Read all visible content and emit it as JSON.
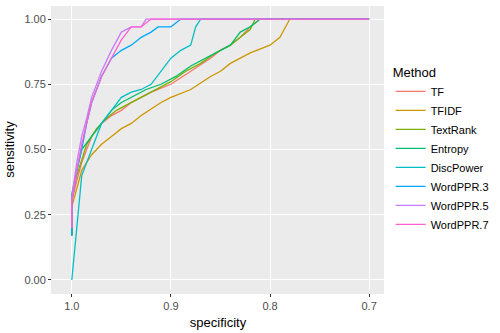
{
  "chart_data": {
    "type": "line",
    "x_label": "specificity",
    "y_label": "sensitivity",
    "legend_title": "Method",
    "legend": "right",
    "grid": true,
    "xlim": [
      1.02,
      0.685
    ],
    "ylim": [
      -0.05,
      1.05
    ],
    "xticks": [
      {
        "value": 1.0,
        "label": "1.0"
      },
      0.9,
      0.8,
      0.7
    ],
    "yticks": [
      {
        "value": 0,
        "label": "0.00"
      },
      {
        "value": 0.25,
        "label": "0.25"
      },
      {
        "value": 0.5,
        "label": "0.50"
      },
      {
        "value": 0.75,
        "label": "0.75"
      },
      {
        "value": 1,
        "label": "1.00"
      }
    ],
    "series": [
      {
        "name": "TF",
        "color": "#F8766D",
        "x": [
          1.0,
          1.0,
          0.995,
          0.99,
          0.985,
          0.98,
          0.97,
          0.96,
          0.95,
          0.94,
          0.93,
          0.92,
          0.9,
          0.88,
          0.86,
          0.85,
          0.84,
          0.83,
          0.82,
          0.81,
          0.7
        ],
        "values": [
          0.17,
          0.3,
          0.38,
          0.45,
          0.5,
          0.55,
          0.6,
          0.63,
          0.65,
          0.68,
          0.7,
          0.72,
          0.75,
          0.8,
          0.85,
          0.88,
          0.9,
          0.93,
          0.97,
          1.0,
          1.0
        ]
      },
      {
        "name": "TFIDF",
        "color": "#CD9600",
        "x": [
          1.0,
          1.0,
          0.995,
          0.99,
          0.98,
          0.97,
          0.96,
          0.95,
          0.94,
          0.93,
          0.91,
          0.9,
          0.88,
          0.86,
          0.85,
          0.84,
          0.82,
          0.8,
          0.79,
          0.78,
          0.7
        ],
        "values": [
          0.17,
          0.28,
          0.35,
          0.42,
          0.48,
          0.52,
          0.55,
          0.58,
          0.6,
          0.63,
          0.68,
          0.7,
          0.73,
          0.78,
          0.8,
          0.83,
          0.87,
          0.9,
          0.93,
          1.0,
          1.0
        ]
      },
      {
        "name": "TextRank",
        "color": "#7CAE00",
        "x": [
          1.0,
          1.0,
          0.995,
          0.99,
          0.985,
          0.975,
          0.965,
          0.955,
          0.945,
          0.93,
          0.92,
          0.9,
          0.885,
          0.87,
          0.855,
          0.84,
          0.83,
          0.82,
          0.815,
          0.7
        ],
        "values": [
          0.17,
          0.32,
          0.4,
          0.46,
          0.52,
          0.58,
          0.62,
          0.65,
          0.67,
          0.7,
          0.72,
          0.76,
          0.8,
          0.83,
          0.87,
          0.9,
          0.93,
          0.96,
          1.0,
          1.0
        ]
      },
      {
        "name": "Entropy",
        "color": "#00BE67",
        "x": [
          1.0,
          1.0,
          0.995,
          0.99,
          0.98,
          0.97,
          0.96,
          0.95,
          0.94,
          0.925,
          0.91,
          0.895,
          0.88,
          0.865,
          0.85,
          0.84,
          0.83,
          0.82,
          0.81,
          0.7
        ],
        "values": [
          0.17,
          0.33,
          0.42,
          0.5,
          0.55,
          0.6,
          0.65,
          0.68,
          0.7,
          0.73,
          0.75,
          0.78,
          0.82,
          0.85,
          0.88,
          0.9,
          0.95,
          0.97,
          1.0,
          1.0
        ]
      },
      {
        "name": "DiscPower",
        "color": "#00BFC4",
        "x": [
          1.0,
          0.99,
          0.98,
          0.97,
          0.96,
          0.95,
          0.94,
          0.93,
          0.92,
          0.91,
          0.9,
          0.89,
          0.88,
          0.875,
          0.87,
          0.7
        ],
        "values": [
          0.0,
          0.4,
          0.5,
          0.6,
          0.65,
          0.7,
          0.72,
          0.73,
          0.75,
          0.8,
          0.85,
          0.88,
          0.9,
          0.97,
          1.0,
          1.0
        ]
      },
      {
        "name": "WordPPR.3",
        "color": "#00A9FF",
        "x": [
          1.0,
          1.0,
          0.995,
          0.99,
          0.985,
          0.98,
          0.97,
          0.96,
          0.95,
          0.94,
          0.93,
          0.92,
          0.913,
          0.9,
          0.89,
          0.7
        ],
        "values": [
          0.17,
          0.3,
          0.42,
          0.5,
          0.6,
          0.68,
          0.78,
          0.85,
          0.88,
          0.9,
          0.93,
          0.95,
          0.97,
          0.97,
          1.0,
          1.0
        ]
      },
      {
        "name": "WordPPR.5",
        "color": "#C77CFF",
        "x": [
          1.0,
          1.0,
          0.995,
          0.99,
          0.985,
          0.98,
          0.97,
          0.96,
          0.95,
          0.94,
          0.93,
          0.925,
          0.7
        ],
        "values": [
          0.2,
          0.32,
          0.45,
          0.55,
          0.62,
          0.7,
          0.8,
          0.88,
          0.95,
          0.97,
          0.97,
          1.0,
          1.0
        ]
      },
      {
        "name": "WordPPR.7",
        "color": "#FF61CC",
        "x": [
          1.0,
          1.0,
          0.995,
          0.99,
          0.985,
          0.98,
          0.97,
          0.96,
          0.95,
          0.94,
          0.93,
          0.92,
          0.7
        ],
        "values": [
          0.2,
          0.3,
          0.42,
          0.52,
          0.6,
          0.68,
          0.78,
          0.85,
          0.92,
          0.97,
          0.97,
          1.0,
          1.0
        ]
      }
    ]
  }
}
